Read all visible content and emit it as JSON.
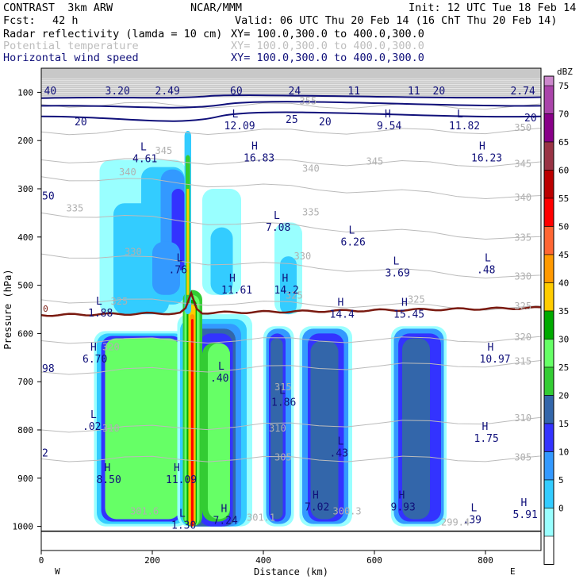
{
  "header": {
    "model": "CONTRAST  3km ARW",
    "institute": "NCAR/MMM",
    "init": "Init: 12 UTC Tue 18 Feb 14",
    "fcst_label": "Fcst:",
    "fcst_value": "42 h",
    "valid": "Valid: 06 UTC Thu 20 Feb 14 (16 ChT Thu 20 Feb 14)",
    "field1": "Radar reflectivity (lamda = 10 cm)",
    "field2": "Potential temperature",
    "field3": "Horizontal wind speed",
    "xy1": "XY= 100.0,300.0 to 400.0,300.0",
    "xy2": "XY= 100.0,300.0 to 400.0,300.0",
    "xy3": "XY= 100.0,300.0 to 400.0,300.0"
  },
  "colors": {
    "reflectivity": [
      "#ffffff",
      "#99ffff",
      "#33ccff",
      "#3399ff",
      "#3333ff",
      "#3366aa",
      "#33cc33",
      "#66ff66",
      "#00aa00",
      "#ffcc00",
      "#ff9900",
      "#ff6633",
      "#ff0000",
      "#bb0000",
      "#993344",
      "#880088",
      "#aa44aa",
      "#cc88cc",
      "#e8e8f0"
    ],
    "wind_contour": "#10107a",
    "theta_contour": "#bbbbbb",
    "freezing_line": "#7a1a10"
  },
  "chart_data": {
    "type": "cross-section",
    "xlabel": "Distance (km)",
    "ylabel": "Pressure (hPa)",
    "x_ticks": [
      "0",
      "200",
      "400",
      "600",
      "800"
    ],
    "y_ticks": [
      "100",
      "200",
      "300",
      "400",
      "500",
      "600",
      "700",
      "800",
      "900",
      "1000"
    ],
    "xlim": [
      0,
      900
    ],
    "ylim": [
      1050,
      50
    ],
    "west_label": "W",
    "east_label": "E",
    "colorbar": {
      "unit": "dBZ",
      "levels": [
        "75",
        "70",
        "65",
        "60",
        "55",
        "50",
        "45",
        "40",
        "35",
        "30",
        "25",
        "20",
        "15",
        "10",
        "5",
        "0"
      ]
    },
    "wind_labels": [
      {
        "x": 5,
        "p": 86,
        "text": "40"
      },
      {
        "x": 115,
        "p": 86,
        "text": "3.20"
      },
      {
        "x": 205,
        "p": 86,
        "text": "2.49"
      },
      {
        "x": 340,
        "p": 86,
        "text": "60"
      },
      {
        "x": 445,
        "p": 86,
        "text": "24"
      },
      {
        "x": 552,
        "p": 86,
        "text": "11"
      },
      {
        "x": 660,
        "p": 86,
        "text": "11"
      },
      {
        "x": 705,
        "p": 86,
        "text": "20"
      },
      {
        "x": 845,
        "p": 86,
        "text": "2.74"
      },
      {
        "x": 60,
        "p": 150,
        "text": "20"
      },
      {
        "x": 440,
        "p": 145,
        "text": "25"
      },
      {
        "x": 500,
        "p": 150,
        "text": "20"
      },
      {
        "x": 870,
        "p": 142,
        "text": "20"
      }
    ],
    "theta_labels": [
      {
        "x": 465,
        "p": 125,
        "text": "355"
      },
      {
        "x": 852,
        "p": 180,
        "text": "350"
      },
      {
        "x": 205,
        "p": 228,
        "text": "345"
      },
      {
        "x": 585,
        "p": 250,
        "text": "345"
      },
      {
        "x": 852,
        "p": 255,
        "text": "345"
      },
      {
        "x": 470,
        "p": 265,
        "text": "340"
      },
      {
        "x": 140,
        "p": 272,
        "text": "340"
      },
      {
        "x": 852,
        "p": 325,
        "text": "340"
      },
      {
        "x": 45,
        "p": 347,
        "text": "335"
      },
      {
        "x": 470,
        "p": 355,
        "text": "335"
      },
      {
        "x": 852,
        "p": 408,
        "text": "335"
      },
      {
        "x": 150,
        "p": 437,
        "text": "330"
      },
      {
        "x": 455,
        "p": 446,
        "text": "330"
      },
      {
        "x": 852,
        "p": 488,
        "text": "330"
      },
      {
        "x": 440,
        "p": 528,
        "text": "325"
      },
      {
        "x": 660,
        "p": 536,
        "text": "325"
      },
      {
        "x": 852,
        "p": 550,
        "text": "325"
      },
      {
        "x": 125,
        "p": 540,
        "text": "325"
      },
      {
        "x": 852,
        "p": 614,
        "text": "320"
      },
      {
        "x": 110,
        "p": 635,
        "text": "320"
      },
      {
        "x": 852,
        "p": 664,
        "text": "315"
      },
      {
        "x": 420,
        "p": 718,
        "text": "315"
      },
      {
        "x": 852,
        "p": 782,
        "text": "310"
      },
      {
        "x": 110,
        "p": 803,
        "text": "310"
      },
      {
        "x": 410,
        "p": 803,
        "text": "310"
      },
      {
        "x": 420,
        "p": 863,
        "text": "305"
      },
      {
        "x": 852,
        "p": 863,
        "text": "305"
      },
      {
        "x": 160,
        "p": 975,
        "text": "301.6"
      },
      {
        "x": 370,
        "p": 988,
        "text": "301.1"
      },
      {
        "x": 525,
        "p": 975,
        "text": "300.3"
      },
      {
        "x": 720,
        "p": 998,
        "text": "299.4"
      }
    ],
    "freezing_level_label": "0",
    "extrema": [
      {
        "x": 355,
        "p": 172,
        "type": "L",
        "value": "12.09"
      },
      {
        "x": 630,
        "p": 172,
        "type": "H",
        "value": "9.54"
      },
      {
        "x": 760,
        "p": 172,
        "type": "L",
        "value": "11.82"
      },
      {
        "x": 190,
        "p": 240,
        "type": "L",
        "value": "4.61"
      },
      {
        "x": 390,
        "p": 238,
        "type": "H",
        "value": "16.83"
      },
      {
        "x": 800,
        "p": 238,
        "type": "H",
        "value": "16.23"
      },
      {
        "x": 430,
        "p": 382,
        "type": "L",
        "value": "7.08"
      },
      {
        "x": 565,
        "p": 413,
        "type": "L",
        "value": "6.26"
      },
      {
        "x": 645,
        "p": 477,
        "type": "L",
        "value": "3.69"
      },
      {
        "x": 810,
        "p": 470,
        "type": "L",
        "value": ".48"
      },
      {
        "x": 255,
        "p": 470,
        "type": "L",
        "value": ".76"
      },
      {
        "x": 350,
        "p": 512,
        "type": "H",
        "value": "11.61"
      },
      {
        "x": 445,
        "p": 512,
        "type": "H",
        "value": "14.2"
      },
      {
        "x": 110,
        "p": 560,
        "type": "L",
        "value": "1.88"
      },
      {
        "x": 545,
        "p": 562,
        "type": "H",
        "value": "14.4"
      },
      {
        "x": 660,
        "p": 562,
        "type": "H",
        "value": "15.45"
      },
      {
        "x": 100,
        "p": 655,
        "type": "H",
        "value": "6.70"
      },
      {
        "x": 815,
        "p": 655,
        "type": "H",
        "value": "10.97"
      },
      {
        "x": 330,
        "p": 695,
        "type": "L",
        "value": ".40"
      },
      {
        "x": 440,
        "p": 745,
        "type": "L",
        "value": "1.86"
      },
      {
        "x": 100,
        "p": 795,
        "type": "L",
        "value": ".02"
      },
      {
        "x": 805,
        "p": 820,
        "type": "H",
        "value": "1.75"
      },
      {
        "x": 545,
        "p": 850,
        "type": "L",
        "value": ".43"
      },
      {
        "x": 125,
        "p": 905,
        "type": "H",
        "value": "8.50"
      },
      {
        "x": 250,
        "p": 905,
        "type": "H",
        "value": "11.09"
      },
      {
        "x": 500,
        "p": 962,
        "type": "H",
        "value": "7.02"
      },
      {
        "x": 655,
        "p": 962,
        "type": "H",
        "value": "9.93"
      },
      {
        "x": 785,
        "p": 988,
        "type": "L",
        "value": ".39"
      },
      {
        "x": 875,
        "p": 978,
        "type": "H",
        "value": "5.91"
      },
      {
        "x": 335,
        "p": 990,
        "type": "H",
        "value": "7.24"
      },
      {
        "x": 260,
        "p": 1000,
        "type": "L",
        "value": "1.30"
      }
    ],
    "edge_labels": [
      {
        "x": 0,
        "p": 322,
        "text": "50"
      },
      {
        "x": 0,
        "p": 680,
        "text": "98"
      },
      {
        "x": 0,
        "p": 855,
        "text": "2"
      }
    ]
  }
}
